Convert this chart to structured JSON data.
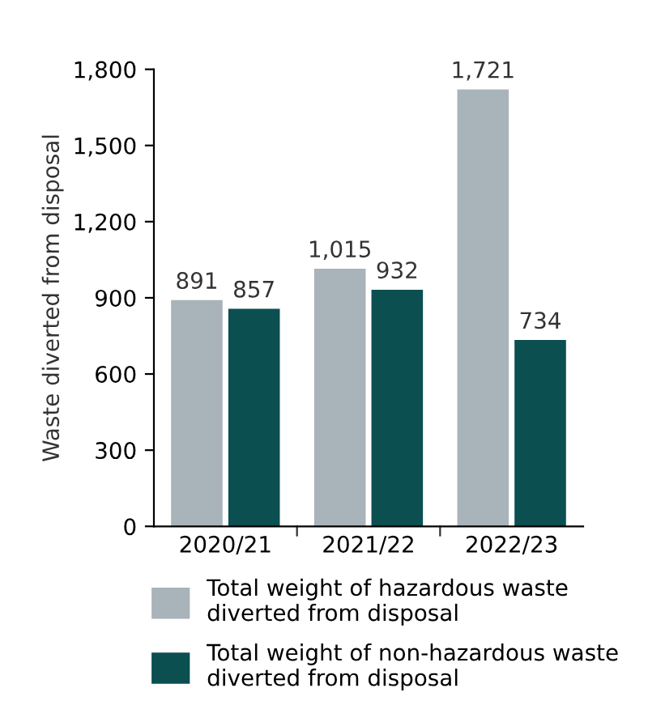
{
  "chart_data": {
    "type": "bar",
    "ylabel": "Waste diverted from disposal",
    "categories": [
      "2020/21",
      "2021/22",
      "2022/23"
    ],
    "series": [
      {
        "name": "Total weight of hazardous waste diverted from disposal",
        "color": "#a9b3ba",
        "values": [
          891,
          1015,
          1721
        ],
        "value_labels": [
          "891",
          "1,015",
          "1,721"
        ]
      },
      {
        "name": "Total weight of non-hazardous waste diverted from disposal",
        "color": "#0b4f51",
        "values": [
          857,
          932,
          734
        ],
        "value_labels": [
          "857",
          "932",
          "734"
        ]
      }
    ],
    "ylim": [
      0,
      1800
    ],
    "yticks": [
      0,
      300,
      600,
      900,
      {
        "value": 1200,
        "label": "1,200"
      },
      {
        "value": 1500,
        "label": "1,500"
      },
      {
        "value": 1800,
        "label": "1,800"
      }
    ],
    "grid": false,
    "legend": "bottom"
  }
}
